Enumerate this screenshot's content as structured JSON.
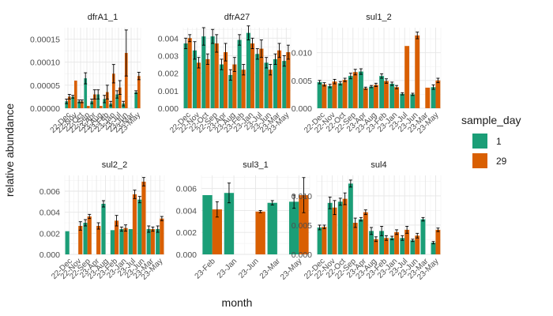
{
  "chart_data": {
    "type": "bar",
    "xlabel": "month",
    "ylabel": "relative abundance",
    "legend": {
      "title": "sample_day",
      "position": "right",
      "entries": [
        {
          "label": "1",
          "color": "#1b9e77"
        },
        {
          "label": "29",
          "color": "#d95f02"
        }
      ]
    },
    "grid": true,
    "panels": [
      {
        "title": "dfrA1_1",
        "ylim": [
          0,
          0.000175
        ],
        "yticks": [
          0,
          5e-05,
          0.0001,
          0.00015
        ],
        "ytick_labels": [
          "0.00000",
          "0.00005",
          "0.00010",
          "0.00015"
        ],
        "categories": [
          "22-Dec",
          "22-Nov",
          "22-Oct",
          "22-Sep",
          "23-Apr",
          "23-Aug",
          "23-Feb",
          "23-Jan",
          "23-Jul",
          "23-Jun",
          "23-Mar",
          "23-May"
        ],
        "series": [
          {
            "name": "1",
            "values": [
              1.5e-05,
              2.5e-05,
              1.5e-05,
              6.5e-05,
              1.5e-05,
              3e-05,
              2e-05,
              1e-05,
              3e-05,
              1e-05,
              0.0,
              3.5e-05
            ],
            "err": [
              5e-06,
              3e-06,
              3e-06,
              1.2e-05,
              5e-06,
              1e-05,
              8e-06,
              5e-06,
              8e-06,
              5e-06,
              0.0,
              3e-06
            ]
          },
          {
            "name": "29",
            "values": [
              2.5e-05,
              6e-05,
              1.5e-05,
              5e-06,
              3e-05,
              5e-06,
              3.5e-05,
              7.5e-05,
              4.5e-05,
              0.00012,
              0.0,
              7e-05
            ],
            "err": [
              5e-06,
              0.0,
              3e-06,
              0.0,
              1e-05,
              0.0,
              1.5e-05,
              2e-05,
              1.5e-05,
              5e-05,
              0.0,
              8e-06
            ]
          }
        ]
      },
      {
        "title": "dfrA27",
        "ylim": [
          0,
          0.0046
        ],
        "yticks": [
          0,
          0.001,
          0.002,
          0.003,
          0.004
        ],
        "ytick_labels": [
          "0.000",
          "0.001",
          "0.002",
          "0.003",
          "0.004"
        ],
        "categories": [
          "22-Dec",
          "22-Nov",
          "22-Oct",
          "22-Sep",
          "23-Apr",
          "23-Aug",
          "23-Feb",
          "23-Jan",
          "23-Jul",
          "23-Jun",
          "23-Mar",
          "23-May"
        ],
        "series": [
          {
            "name": "1",
            "values": [
              0.0037,
              0.0033,
              0.0041,
              0.0041,
              0.0025,
              0.0019,
              0.0039,
              0.0043,
              0.0031,
              0.0026,
              0.0028,
              0.0027
            ],
            "err": [
              0.0003,
              0.0005,
              0.0005,
              0.0004,
              0.0003,
              0.0003,
              0.0003,
              0.0004,
              0.0003,
              0.0003,
              0.0003,
              0.0003
            ]
          },
          {
            "name": "29",
            "values": [
              0.004,
              0.0026,
              0.0028,
              0.0037,
              0.0032,
              0.0025,
              0.0022,
              0.0037,
              0.0034,
              0.0022,
              0.0033,
              0.0032
            ],
            "err": [
              0.0002,
              0.0003,
              0.0003,
              0.0005,
              0.0005,
              0.0004,
              0.0003,
              0.0003,
              0.0005,
              0.0003,
              0.0004,
              0.0004
            ]
          }
        ]
      },
      {
        "title": "sul1_2",
        "ylim": [
          0,
          0.0145
        ],
        "yticks": [
          0,
          0.005,
          0.01
        ],
        "ytick_labels": [
          "0.000",
          "0.005",
          "0.010"
        ],
        "categories": [
          "22-Dec",
          "22-Nov",
          "22-Oct",
          "22-Sep",
          "23-Apr",
          "23-Aug",
          "23-Feb",
          "23-Jan",
          "23-Jul",
          "23-Jun",
          "23-Mar",
          "23-May"
        ],
        "series": [
          {
            "name": "1",
            "values": [
              0.0047,
              0.004,
              0.0045,
              0.0058,
              0.0066,
              0.0039,
              0.0058,
              0.0044,
              0.0026,
              0.0025,
              0.0,
              0.0038
            ],
            "err": [
              0.0003,
              0.0003,
              0.0003,
              0.0005,
              0.0005,
              0.0002,
              0.0004,
              0.0003,
              0.0002,
              0.0002,
              0.0,
              0.0004
            ]
          },
          {
            "name": "29",
            "values": [
              0.0043,
              0.0048,
              0.0051,
              0.0065,
              0.0036,
              0.0042,
              0.0049,
              0.0038,
              0.0112,
              0.0131,
              0.0037,
              0.005
            ],
            "err": [
              0.0003,
              0.0004,
              0.0003,
              0.0005,
              0.0002,
              0.0003,
              0.0004,
              0.0003,
              0.0,
              0.0006,
              0.0,
              0.0004
            ]
          }
        ]
      },
      {
        "title": "sul2_2",
        "ylim": [
          0,
          0.0075
        ],
        "yticks": [
          0,
          0.002,
          0.004,
          0.006
        ],
        "ytick_labels": [
          "0.000",
          "0.002",
          "0.004",
          "0.006"
        ],
        "categories": [
          "22-Dec",
          "22-Nov",
          "22-Sep",
          "23-Apr",
          "23-Aug",
          "23-Feb",
          "23-Jan",
          "23-Jul",
          "23-Jun",
          "23-Mar",
          "23-May"
        ],
        "series": [
          {
            "name": "1",
            "values": [
              0.0022,
              0.0,
              0.003,
              0.0,
              0.0048,
              0.0023,
              0.0024,
              0.0024,
              0.0052,
              0.0024,
              0.0024
            ],
            "err": [
              0.0,
              0.0,
              0.0003,
              0.0,
              0.0003,
              0.0,
              0.0002,
              0.0,
              0.0003,
              0.0003,
              0.0003
            ]
          },
          {
            "name": "29",
            "values": [
              0.0,
              0.0027,
              0.0036,
              0.0027,
              0.0,
              0.0032,
              0.0025,
              0.0057,
              0.0069,
              0.0024,
              0.0034
            ],
            "err": [
              0.0,
              0.0004,
              0.0002,
              0.0003,
              0.0,
              0.0005,
              0.0003,
              0.0004,
              0.0004,
              0.0002,
              0.0002
            ]
          }
        ]
      },
      {
        "title": "sul3_1",
        "ylim": [
          0,
          0.0072
        ],
        "yticks": [
          0,
          0.002,
          0.004,
          0.006
        ],
        "ytick_labels": [
          "0.000",
          "0.002",
          "0.004",
          "0.006"
        ],
        "categories": [
          "23-Feb",
          "23-Jan",
          "23-Jun",
          "23-Mar",
          "23-May"
        ],
        "series": [
          {
            "name": "1",
            "values": [
              0.0054,
              0.0056,
              0.0,
              0.0047,
              0.0048
            ],
            "err": [
              0.0,
              0.0009,
              0.0,
              0.0002,
              0.0006
            ]
          },
          {
            "name": "29",
            "values": [
              0.0041,
              0.0,
              0.0039,
              0.0,
              0.0054
            ],
            "err": [
              0.0007,
              0.0,
              0.0001,
              0.0,
              0.0016
            ]
          }
        ]
      },
      {
        "title": "sul4",
        "ylim": [
          0,
          0.0135
        ],
        "yticks": [
          0,
          0.005,
          0.01
        ],
        "ytick_labels": [
          "0.000",
          "0.005",
          "0.010"
        ],
        "categories": [
          "22-Dec",
          "22-Nov",
          "22-Oct",
          "22-Sep",
          "23-Apr",
          "23-Aug",
          "23-Feb",
          "23-Jan",
          "23-Jul",
          "23-Jun",
          "23-Mar",
          "23-May"
        ],
        "series": [
          {
            "name": "1",
            "values": [
              0.0046,
              0.0088,
              0.009,
              0.0121,
              0.006,
              0.004,
              0.004,
              0.0028,
              0.0028,
              0.0024,
              0.006,
              0.002
            ],
            "err": [
              0.0004,
              0.001,
              0.0006,
              0.0006,
              0.0003,
              0.0006,
              0.0008,
              0.0003,
              0.0004,
              0.0002,
              0.0003,
              0.0002
            ]
          },
          {
            "name": "29",
            "values": [
              0.0047,
              0.008,
              0.0095,
              0.0054,
              0.0072,
              0.0026,
              0.0028,
              0.0038,
              0.0042,
              0.0032,
              0.0,
              0.0042
            ],
            "err": [
              0.0003,
              0.0012,
              0.001,
              0.0008,
              0.0004,
              0.0004,
              0.0004,
              0.0004,
              0.0006,
              0.0004,
              0.0,
              0.0003
            ]
          }
        ]
      }
    ]
  }
}
